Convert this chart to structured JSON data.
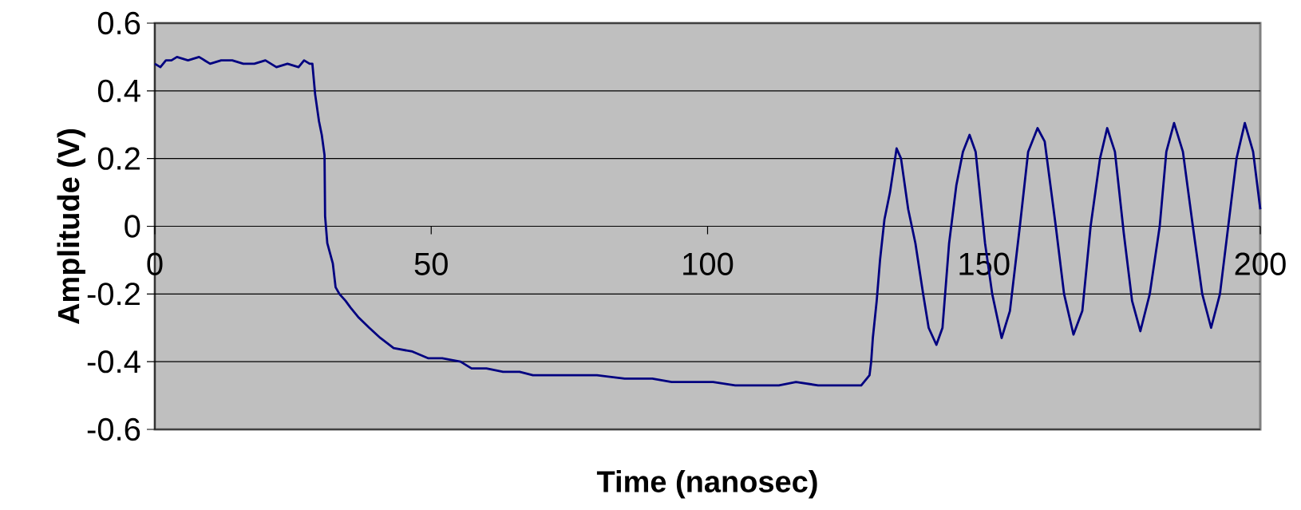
{
  "chart_data": {
    "type": "line",
    "xlabel": "Time (nanosec)",
    "ylabel": "Amplitude (V)",
    "xlim": [
      0,
      200
    ],
    "xticks": [
      0,
      50,
      100,
      150,
      200
    ],
    "ylim": [
      -0.6,
      0.6
    ],
    "yticks": [
      -0.6,
      -0.4,
      -0.2,
      0,
      0.2,
      0.4,
      0.6
    ],
    "grid": "y",
    "marker": "none",
    "line_style": "solid",
    "color": "#000080",
    "x": [
      0,
      1,
      2,
      3,
      4,
      6,
      8,
      10,
      12,
      14,
      16,
      18,
      20,
      22,
      24,
      26,
      27,
      28,
      28.5,
      29,
      29.7,
      30.2,
      30.7,
      30.8,
      31.2,
      32.2,
      32.7,
      33.4,
      34.5,
      35.4,
      36.9,
      38.8,
      40.8,
      43.2,
      46.6,
      49.5,
      52,
      55.3,
      57.3,
      60,
      63,
      66,
      68.4,
      72,
      76,
      80,
      85,
      90,
      93.5,
      97,
      101,
      105,
      109,
      112.9,
      116,
      120,
      124,
      127.8,
      129.3,
      129.6,
      129.9,
      130.6,
      131.2,
      132,
      133,
      134.2,
      135,
      136.3,
      137.6,
      139,
      140,
      141.4,
      142.5,
      143.7,
      145,
      146.2,
      147.4,
      148.5,
      150.2,
      151.5,
      153.2,
      154.7,
      156.5,
      158,
      159.7,
      161,
      163,
      164.5,
      166.2,
      167.8,
      169.3,
      171,
      172.3,
      173.7,
      175.3,
      176.8,
      178.3,
      180,
      181.8,
      183,
      184.4,
      186,
      187.8,
      189.5,
      191.1,
      192.7,
      194.2,
      195.7,
      197.2,
      198.7,
      200
    ],
    "values": [
      0.48,
      0.47,
      0.49,
      0.49,
      0.5,
      0.49,
      0.5,
      0.48,
      0.49,
      0.49,
      0.48,
      0.48,
      0.49,
      0.47,
      0.48,
      0.47,
      0.49,
      0.48,
      0.48,
      0.39,
      0.31,
      0.27,
      0.21,
      0.03,
      -0.05,
      -0.11,
      -0.18,
      -0.2,
      -0.22,
      -0.24,
      -0.27,
      -0.3,
      -0.33,
      -0.36,
      -0.37,
      -0.39,
      -0.39,
      -0.4,
      -0.42,
      -0.42,
      -0.43,
      -0.43,
      -0.44,
      -0.44,
      -0.44,
      -0.44,
      -0.45,
      -0.45,
      -0.46,
      -0.46,
      -0.46,
      -0.47,
      -0.47,
      -0.47,
      -0.46,
      -0.47,
      -0.47,
      -0.47,
      -0.44,
      -0.4,
      -0.33,
      -0.22,
      -0.1,
      0.02,
      0.1,
      0.23,
      0.2,
      0.05,
      -0.05,
      -0.2,
      -0.3,
      -0.35,
      -0.3,
      -0.05,
      0.12,
      0.22,
      0.27,
      0.22,
      -0.05,
      -0.2,
      -0.33,
      -0.25,
      0,
      0.22,
      0.29,
      0.25,
      0,
      -0.2,
      -0.32,
      -0.25,
      0,
      0.2,
      0.29,
      0.22,
      -0.02,
      -0.22,
      -0.31,
      -0.2,
      0,
      0.22,
      0.305,
      0.22,
      0,
      -0.2,
      -0.3,
      -0.2,
      0,
      0.2,
      0.305,
      0.22,
      0.05
    ]
  }
}
